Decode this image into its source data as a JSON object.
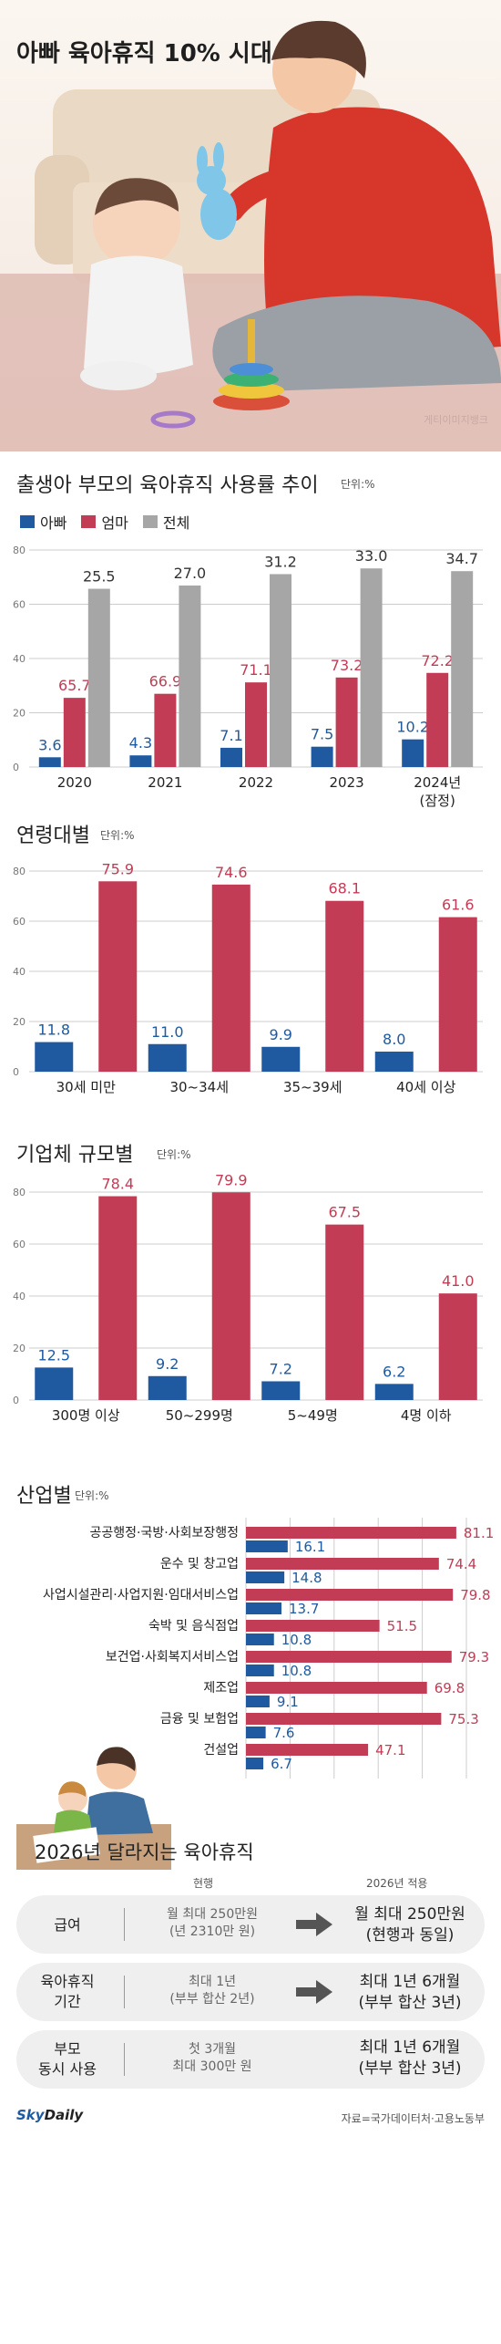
{
  "header": {
    "title": "아빠 육아휴직 10% 시대",
    "photo_credit": "게티이미지뱅크"
  },
  "colors": {
    "dad": "#1f5aa0",
    "mom": "#c23c55",
    "total": "#a6a6a6",
    "grid": "#cccccc"
  },
  "trend": {
    "title": "출생아 부모의 육아휴직 사용률 추이",
    "unit": "단위:%",
    "legend": [
      "아빠",
      "엄마",
      "전체"
    ]
  },
  "age": {
    "title": "연령대별",
    "unit": "단위:%"
  },
  "company": {
    "title": "기업체 규모별",
    "unit": "단위:%"
  },
  "industry": {
    "title": "산업별",
    "unit": "단위:%"
  },
  "chart_data": [
    {
      "type": "bar",
      "title": "출생아 부모의 육아휴직 사용률 추이",
      "unit": "단위:%",
      "categories": [
        "2020",
        "2021",
        "2022",
        "2023",
        "2024년\n(잠정)"
      ],
      "series": [
        {
          "name": "아빠",
          "values": [
            3.6,
            4.3,
            7.1,
            7.5,
            10.2
          ]
        },
        {
          "name": "엄마",
          "values": [
            65.7,
            66.9,
            71.1,
            73.2,
            72.2
          ]
        },
        {
          "name": "전체",
          "values": [
            25.5,
            27.0,
            31.2,
            33.0,
            34.7
          ]
        }
      ],
      "value_labels": [
        [
          "3.6",
          "4.3",
          "7.1",
          "7.5",
          "10.2"
        ],
        [
          "65.7",
          "66.9",
          "71.1",
          "73.2",
          "72.2"
        ],
        [
          "25.5",
          "27.0",
          "31.2",
          "33.0",
          "34.7"
        ]
      ],
      "yticks": [
        0,
        20,
        40,
        60,
        80
      ],
      "ylim": [
        0,
        80
      ],
      "bar_heights_note": "drawn bar heights of 엄마 and 전체 follow the image's own (swapped) layout",
      "drawn_values": [
        [
          3.6,
          4.3,
          7.1,
          7.5,
          10.2
        ],
        [
          25.5,
          27.0,
          31.2,
          33.0,
          34.7
        ],
        [
          65.7,
          66.9,
          71.1,
          73.2,
          72.2
        ]
      ],
      "grid": true
    },
    {
      "type": "bar",
      "title": "연령대별",
      "unit": "단위:%",
      "categories": [
        "30세 미만",
        "30~34세",
        "35~39세",
        "40세 이상"
      ],
      "series": [
        {
          "name": "아빠",
          "values": [
            11.8,
            11.0,
            9.9,
            8.0
          ]
        },
        {
          "name": "엄마",
          "values": [
            75.9,
            74.6,
            68.1,
            61.6
          ]
        }
      ],
      "value_labels": [
        [
          "11.8",
          "11.0",
          "9.9",
          "8.0"
        ],
        [
          "75.9",
          "74.6",
          "68.1",
          "61.6"
        ]
      ],
      "yticks": [
        0,
        20,
        40,
        60,
        80
      ],
      "ylim": [
        0,
        80
      ],
      "grid": true
    },
    {
      "type": "bar",
      "title": "기업체 규모별",
      "unit": "단위:%",
      "categories": [
        "300명 이상",
        "50~299명",
        "5~49명",
        "4명 이하"
      ],
      "series": [
        {
          "name": "아빠",
          "values": [
            12.5,
            9.2,
            7.2,
            6.2
          ]
        },
        {
          "name": "엄마",
          "values": [
            78.4,
            79.9,
            67.5,
            41.0
          ]
        }
      ],
      "value_labels": [
        [
          "12.5",
          "9.2",
          "7.2",
          "6.2"
        ],
        [
          "78.4",
          "79.9",
          "67.5",
          "41.0"
        ]
      ],
      "yticks": [
        0,
        20,
        40,
        60,
        80
      ],
      "ylim": [
        0,
        80
      ],
      "grid": true
    },
    {
      "type": "bar",
      "orientation": "horizontal",
      "title": "산업별",
      "unit": "단위:%",
      "categories": [
        "공공행정·국방·사회보장행정",
        "운수 및 창고업",
        "사업시설관리·사업지원·임대서비스업",
        "숙박 및 음식점업",
        "보건업·사회복지서비스업",
        "제조업",
        "금융 및 보험업",
        "건설업"
      ],
      "series": [
        {
          "name": "엄마",
          "values": [
            81.1,
            74.4,
            79.8,
            51.5,
            79.3,
            69.8,
            75.3,
            47.1
          ]
        },
        {
          "name": "아빠",
          "values": [
            16.1,
            14.8,
            13.7,
            10.8,
            10.8,
            9.1,
            7.6,
            6.7
          ]
        }
      ],
      "value_labels": [
        [
          "81.1",
          "74.4",
          "79.8",
          "51.5",
          "79.3",
          "69.8",
          "75.3",
          "47.1"
        ],
        [
          "16.1",
          "14.8",
          "13.7",
          "10.8",
          "10.8",
          "9.1",
          "7.6",
          "6.7"
        ]
      ],
      "xticks": [
        0,
        17,
        34,
        51,
        68,
        85
      ],
      "xlim": [
        0,
        85
      ],
      "grid": true
    }
  ],
  "changes": {
    "title": "2026년 달라지는 육아휴직",
    "col_current": "현행",
    "col_new": "2026년 적용",
    "rows": [
      {
        "label": "급여",
        "current_1": "월 최대 250만원",
        "current_2": "(년 2310만 원)",
        "new_1": "월 최대 250만원",
        "new_2": "(현행과 동일)",
        "arrow": true
      },
      {
        "label": "육아휴직\n기간",
        "current_1": "최대 1년",
        "current_2": "(부부 합산 2년)",
        "new_1": "최대 1년 6개월",
        "new_2": "(부부 합산 3년)",
        "arrow": true
      },
      {
        "label": "부모\n동시 사용",
        "current_1": "첫 3개월",
        "current_2": "최대 300만 원",
        "new_1": "최대 1년 6개월",
        "new_2": "(부부 합산 3년)",
        "arrow": false
      }
    ]
  },
  "footer": {
    "logo_sky": "Sky",
    "logo_daily": "Daily",
    "source": "자료=국가데이터처·고용노동부"
  }
}
